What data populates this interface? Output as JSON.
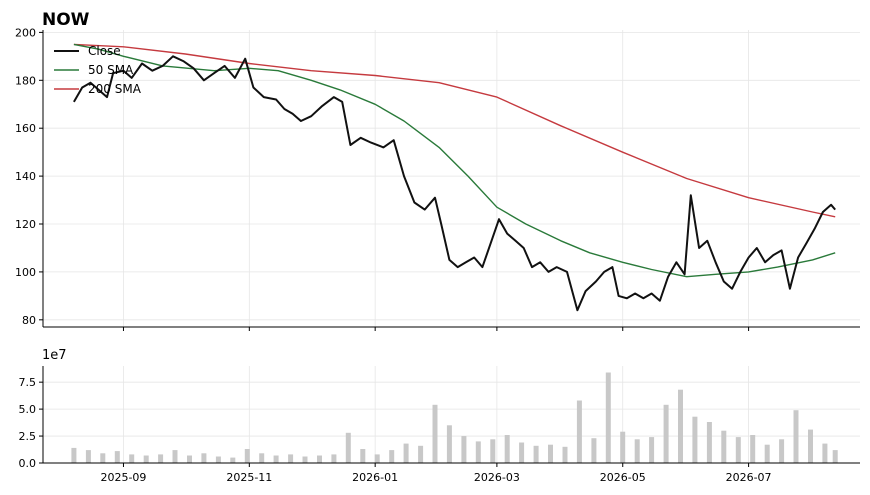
{
  "chart_data": [
    {
      "type": "line",
      "title": "NOW",
      "x_tick_labels": [
        "2025-09",
        "2025-11",
        "2026-01",
        "2026-03",
        "2026-05",
        "2026-07"
      ],
      "x_tick_dates": [
        "2025-09-01",
        "2025-11-01",
        "2026-01-01",
        "2026-03-01",
        "2026-05-01",
        "2026-07-01"
      ],
      "xlim": [
        "2025-07-24",
        "2026-08-24"
      ],
      "ylim": [
        77,
        201
      ],
      "yticks": [
        80,
        100,
        120,
        140,
        160,
        180,
        200
      ],
      "grid": true,
      "legend_position": "upper-left",
      "colors": {
        "close": "#111111",
        "sma50": "#2a7a3a",
        "sma200": "#c53a3f"
      },
      "series": [
        {
          "name": "Close",
          "points": [
            [
              "2025-08-08",
              171
            ],
            [
              "2025-08-12",
              177
            ],
            [
              "2025-08-16",
              179
            ],
            [
              "2025-08-20",
              176
            ],
            [
              "2025-08-24",
              173
            ],
            [
              "2025-08-27",
              183
            ],
            [
              "2025-09-01",
              184
            ],
            [
              "2025-09-05",
              181
            ],
            [
              "2025-09-10",
              187
            ],
            [
              "2025-09-15",
              184
            ],
            [
              "2025-09-20",
              186
            ],
            [
              "2025-09-25",
              190
            ],
            [
              "2025-09-30",
              188
            ],
            [
              "2025-10-05",
              185
            ],
            [
              "2025-10-10",
              180
            ],
            [
              "2025-10-15",
              183
            ],
            [
              "2025-10-20",
              186
            ],
            [
              "2025-10-25",
              181
            ],
            [
              "2025-10-30",
              189
            ],
            [
              "2025-11-03",
              177
            ],
            [
              "2025-11-08",
              173
            ],
            [
              "2025-11-14",
              172
            ],
            [
              "2025-11-18",
              168
            ],
            [
              "2025-11-22",
              166
            ],
            [
              "2025-11-26",
              163
            ],
            [
              "2025-12-01",
              165
            ],
            [
              "2025-12-06",
              169
            ],
            [
              "2025-12-12",
              173
            ],
            [
              "2025-12-16",
              171
            ],
            [
              "2025-12-20",
              153
            ],
            [
              "2025-12-25",
              156
            ],
            [
              "2025-12-30",
              154
            ],
            [
              "2026-01-05",
              152
            ],
            [
              "2026-01-10",
              155
            ],
            [
              "2026-01-15",
              140
            ],
            [
              "2026-01-20",
              129
            ],
            [
              "2026-01-25",
              126
            ],
            [
              "2026-01-30",
              131
            ],
            [
              "2026-02-02",
              120
            ],
            [
              "2026-02-06",
              105
            ],
            [
              "2026-02-10",
              102
            ],
            [
              "2026-02-14",
              104
            ],
            [
              "2026-02-18",
              106
            ],
            [
              "2026-02-22",
              102
            ],
            [
              "2026-02-26",
              112
            ],
            [
              "2026-03-02",
              122
            ],
            [
              "2026-03-06",
              116
            ],
            [
              "2026-03-10",
              113
            ],
            [
              "2026-03-14",
              110
            ],
            [
              "2026-03-18",
              102
            ],
            [
              "2026-03-22",
              104
            ],
            [
              "2026-03-26",
              100
            ],
            [
              "2026-03-30",
              102
            ],
            [
              "2026-04-04",
              100
            ],
            [
              "2026-04-09",
              84
            ],
            [
              "2026-04-13",
              92
            ],
            [
              "2026-04-18",
              96
            ],
            [
              "2026-04-22",
              100
            ],
            [
              "2026-04-26",
              102
            ],
            [
              "2026-04-29",
              90
            ],
            [
              "2026-05-03",
              89
            ],
            [
              "2026-05-07",
              91
            ],
            [
              "2026-05-11",
              89
            ],
            [
              "2026-05-15",
              91
            ],
            [
              "2026-05-19",
              88
            ],
            [
              "2026-05-23",
              98
            ],
            [
              "2026-05-27",
              104
            ],
            [
              "2026-05-31",
              99
            ],
            [
              "2026-06-03",
              132
            ],
            [
              "2026-06-07",
              110
            ],
            [
              "2026-06-11",
              113
            ],
            [
              "2026-06-15",
              104
            ],
            [
              "2026-06-19",
              96
            ],
            [
              "2026-06-23",
              93
            ],
            [
              "2026-06-27",
              100
            ],
            [
              "2026-07-01",
              106
            ],
            [
              "2026-07-05",
              110
            ],
            [
              "2026-07-09",
              104
            ],
            [
              "2026-07-13",
              107
            ],
            [
              "2026-07-17",
              109
            ],
            [
              "2026-07-21",
              93
            ],
            [
              "2026-07-25",
              106
            ],
            [
              "2026-07-29",
              112
            ],
            [
              "2026-08-02",
              118
            ],
            [
              "2026-08-06",
              125
            ],
            [
              "2026-08-10",
              128
            ],
            [
              "2026-08-12",
              126
            ]
          ]
        },
        {
          "name": "50 SMA",
          "points": [
            [
              "2025-08-08",
              195
            ],
            [
              "2025-08-20",
              193
            ],
            [
              "2025-09-01",
              190
            ],
            [
              "2025-09-20",
              186
            ],
            [
              "2025-10-15",
              184
            ],
            [
              "2025-11-01",
              185
            ],
            [
              "2025-11-15",
              184
            ],
            [
              "2025-12-01",
              180
            ],
            [
              "2025-12-15",
              176
            ],
            [
              "2026-01-01",
              170
            ],
            [
              "2026-01-15",
              163
            ],
            [
              "2026-02-01",
              152
            ],
            [
              "2026-02-15",
              140
            ],
            [
              "2026-03-01",
              127
            ],
            [
              "2026-03-15",
              120
            ],
            [
              "2026-04-01",
              113
            ],
            [
              "2026-04-15",
              108
            ],
            [
              "2026-05-01",
              104
            ],
            [
              "2026-05-15",
              101
            ],
            [
              "2026-06-01",
              98
            ],
            [
              "2026-06-15",
              99
            ],
            [
              "2026-07-01",
              100
            ],
            [
              "2026-07-15",
              102
            ],
            [
              "2026-08-01",
              105
            ],
            [
              "2026-08-12",
              108
            ]
          ]
        },
        {
          "name": "200 SMA",
          "points": [
            [
              "2025-08-08",
              195
            ],
            [
              "2025-09-01",
              194
            ],
            [
              "2025-10-01",
              191
            ],
            [
              "2025-11-01",
              187
            ],
            [
              "2025-12-01",
              184
            ],
            [
              "2026-01-01",
              182
            ],
            [
              "2026-02-01",
              179
            ],
            [
              "2026-03-01",
              173
            ],
            [
              "2026-04-01",
              161
            ],
            [
              "2026-05-01",
              150
            ],
            [
              "2026-06-01",
              139
            ],
            [
              "2026-07-01",
              131
            ],
            [
              "2026-08-01",
              125
            ],
            [
              "2026-08-12",
              123
            ]
          ]
        }
      ]
    },
    {
      "type": "bar",
      "scale_label": "1e7",
      "ylim": [
        0,
        9
      ],
      "yticks": [
        0,
        2.5,
        5.0,
        7.5
      ],
      "ytick_labels": [
        "0.0",
        "2.5",
        "5.0",
        "7.5"
      ],
      "grid": true,
      "color": "#c8c8c8",
      "series": [
        {
          "name": "Volume",
          "points": [
            [
              "2025-08-08",
              1.4
            ],
            [
              "2025-08-15",
              1.2
            ],
            [
              "2025-08-22",
              0.9
            ],
            [
              "2025-08-29",
              1.1
            ],
            [
              "2025-09-05",
              0.8
            ],
            [
              "2025-09-12",
              0.7
            ],
            [
              "2025-09-19",
              0.8
            ],
            [
              "2025-09-26",
              1.2
            ],
            [
              "2025-10-03",
              0.7
            ],
            [
              "2025-10-10",
              0.9
            ],
            [
              "2025-10-17",
              0.6
            ],
            [
              "2025-10-24",
              0.5
            ],
            [
              "2025-10-31",
              1.3
            ],
            [
              "2025-11-07",
              0.9
            ],
            [
              "2025-11-14",
              0.7
            ],
            [
              "2025-11-21",
              0.8
            ],
            [
              "2025-11-28",
              0.6
            ],
            [
              "2025-12-05",
              0.7
            ],
            [
              "2025-12-12",
              0.8
            ],
            [
              "2025-12-19",
              2.8
            ],
            [
              "2025-12-26",
              1.3
            ],
            [
              "2026-01-02",
              0.8
            ],
            [
              "2026-01-09",
              1.2
            ],
            [
              "2026-01-16",
              1.8
            ],
            [
              "2026-01-23",
              1.6
            ],
            [
              "2026-01-30",
              5.4
            ],
            [
              "2026-02-06",
              3.5
            ],
            [
              "2026-02-13",
              2.5
            ],
            [
              "2026-02-20",
              2.0
            ],
            [
              "2026-02-27",
              2.2
            ],
            [
              "2026-03-06",
              2.6
            ],
            [
              "2026-03-13",
              1.9
            ],
            [
              "2026-03-20",
              1.6
            ],
            [
              "2026-03-27",
              1.7
            ],
            [
              "2026-04-03",
              1.5
            ],
            [
              "2026-04-10",
              5.8
            ],
            [
              "2026-04-17",
              2.3
            ],
            [
              "2026-04-24",
              8.4
            ],
            [
              "2026-05-01",
              2.9
            ],
            [
              "2026-05-08",
              2.2
            ],
            [
              "2026-05-15",
              2.4
            ],
            [
              "2026-05-22",
              5.4
            ],
            [
              "2026-05-29",
              6.8
            ],
            [
              "2026-06-05",
              4.3
            ],
            [
              "2026-06-12",
              3.8
            ],
            [
              "2026-06-19",
              3.0
            ],
            [
              "2026-06-26",
              2.4
            ],
            [
              "2026-07-03",
              2.6
            ],
            [
              "2026-07-10",
              1.7
            ],
            [
              "2026-07-17",
              2.2
            ],
            [
              "2026-07-24",
              4.9
            ],
            [
              "2026-07-31",
              3.1
            ],
            [
              "2026-08-07",
              1.8
            ],
            [
              "2026-08-12",
              1.2
            ]
          ]
        }
      ]
    }
  ]
}
